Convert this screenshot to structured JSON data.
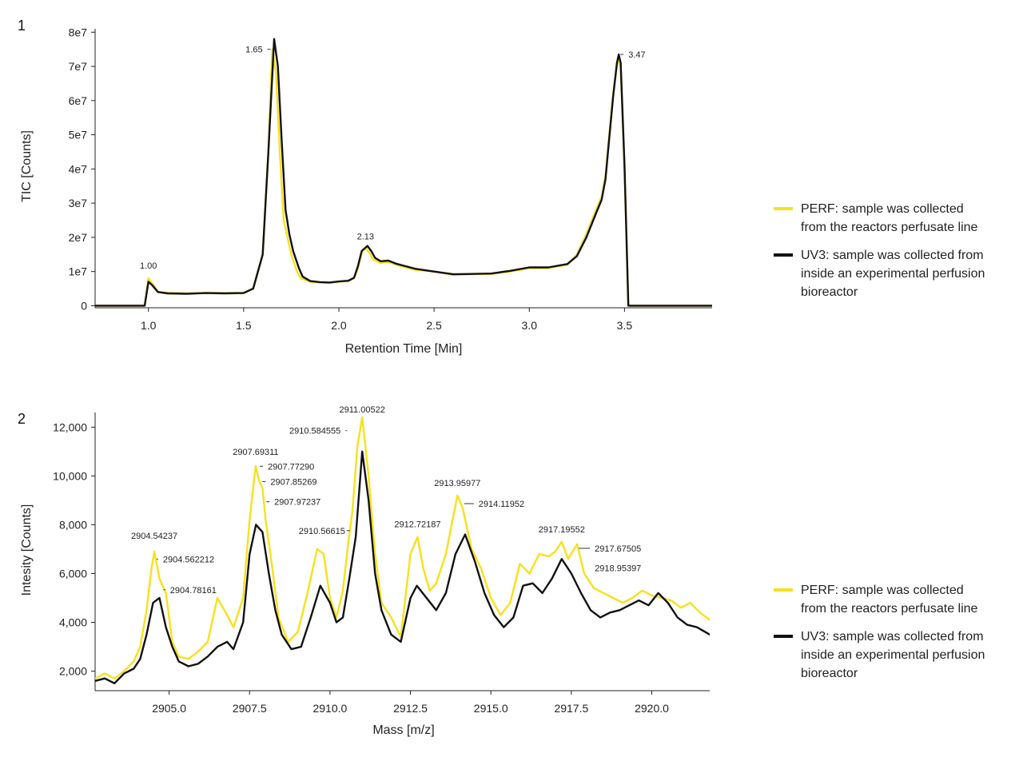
{
  "colors": {
    "perf": "#f7e11b",
    "uv3": "#111111",
    "axis": "#222222"
  },
  "chart_data": [
    {
      "panel": "1",
      "type": "line",
      "xlabel": "Retention Time [Min]",
      "ylabel": "TIC [Counts]",
      "xlim": [
        0.72,
        3.96
      ],
      "ylim": [
        -600000,
        81000000
      ],
      "xticks": [
        1.0,
        1.5,
        2.0,
        2.5,
        3.0,
        3.5
      ],
      "xtick_labels": [
        "1.0",
        "1.5",
        "2.0",
        "2.5",
        "3.0",
        "3.5"
      ],
      "yticks": [
        0,
        10000000,
        20000000,
        30000000,
        40000000,
        50000000,
        60000000,
        70000000,
        80000000
      ],
      "ytick_labels": [
        "0",
        "1e7",
        "2e7",
        "3e7",
        "4e7",
        "5e7",
        "6e7",
        "7e7",
        "8e7"
      ],
      "grid": false,
      "legend_position": "right",
      "series": [
        {
          "name": "PERF: sample was collected from the reactors perfusate line",
          "color": "#f7e11b",
          "x": [
            0.72,
            0.98,
            1.0,
            1.02,
            1.05,
            1.1,
            1.2,
            1.3,
            1.4,
            1.5,
            1.55,
            1.6,
            1.63,
            1.65,
            1.67,
            1.69,
            1.71,
            1.73,
            1.75,
            1.78,
            1.8,
            1.85,
            1.9,
            1.95,
            2.0,
            2.05,
            2.08,
            2.1,
            2.12,
            2.14,
            2.16,
            2.18,
            2.22,
            2.26,
            2.3,
            2.4,
            2.5,
            2.6,
            2.7,
            2.8,
            2.9,
            3.0,
            3.1,
            3.2,
            3.25,
            3.3,
            3.35,
            3.38,
            3.4,
            3.42,
            3.44,
            3.46,
            3.47,
            3.48,
            3.5,
            3.52,
            3.96
          ],
          "y": [
            0,
            0,
            8000000,
            6500000,
            4000000,
            3800000,
            3600000,
            3800000,
            3700000,
            3800000,
            5000000,
            15000000,
            45000000,
            75000000,
            68000000,
            45000000,
            25000000,
            20000000,
            15000000,
            10000000,
            8000000,
            7000000,
            6800000,
            6700000,
            7000000,
            7200000,
            8000000,
            11000000,
            15500000,
            17000000,
            15500000,
            13500000,
            12500000,
            12800000,
            12000000,
            10500000,
            10000000,
            9000000,
            9200000,
            9300000,
            10000000,
            11000000,
            11000000,
            12000000,
            15000000,
            21000000,
            28000000,
            32000000,
            38000000,
            50000000,
            62000000,
            70000000,
            72500000,
            70000000,
            40000000,
            0,
            0
          ]
        },
        {
          "name": "UV3: sample was collected from inside an experimental perfusion bioreactor",
          "color": "#111111",
          "x": [
            0.72,
            0.98,
            1.0,
            1.02,
            1.05,
            1.1,
            1.2,
            1.3,
            1.4,
            1.5,
            1.55,
            1.6,
            1.63,
            1.66,
            1.68,
            1.7,
            1.72,
            1.74,
            1.76,
            1.79,
            1.81,
            1.85,
            1.9,
            1.95,
            2.0,
            2.05,
            2.08,
            2.1,
            2.12,
            2.15,
            2.17,
            2.19,
            2.22,
            2.26,
            2.3,
            2.4,
            2.5,
            2.6,
            2.7,
            2.8,
            2.9,
            3.0,
            3.1,
            3.2,
            3.25,
            3.3,
            3.35,
            3.38,
            3.4,
            3.42,
            3.44,
            3.46,
            3.47,
            3.48,
            3.5,
            3.52,
            3.96
          ],
          "y": [
            0,
            0,
            7000000,
            6000000,
            4000000,
            3600000,
            3500000,
            3700000,
            3600000,
            3700000,
            5000000,
            15000000,
            45000000,
            78000000,
            70000000,
            48000000,
            28000000,
            21000000,
            16000000,
            11000000,
            8500000,
            7200000,
            6900000,
            6800000,
            7100000,
            7300000,
            8200000,
            11500000,
            16000000,
            17500000,
            16000000,
            14000000,
            13000000,
            13200000,
            12300000,
            10800000,
            10000000,
            9200000,
            9300000,
            9400000,
            10200000,
            11200000,
            11200000,
            12200000,
            14500000,
            20000000,
            27000000,
            31000000,
            37000000,
            49000000,
            61000000,
            71000000,
            73500000,
            71000000,
            41000000,
            0,
            0
          ]
        }
      ],
      "annotations": [
        {
          "text": "1.00",
          "x": 1.0,
          "y": 8000000
        },
        {
          "text": "1.65",
          "x": 1.65,
          "y": 75000000
        },
        {
          "text": "2.13",
          "x": 2.14,
          "y": 17000000
        },
        {
          "text": "3.47",
          "x": 3.47,
          "y": 73500000
        }
      ],
      "legend": [
        {
          "lines": [
            "PERF: sample was collected",
            "from the reactors perfusate line"
          ],
          "color": "#f7e11b"
        },
        {
          "lines": [
            "UV3: sample was collected from",
            "inside an experimental perfusion",
            "bioreactor"
          ],
          "color": "#111111"
        }
      ]
    },
    {
      "panel": "2",
      "type": "line",
      "xlabel": "Mass [m/z]",
      "ylabel": "Intesity [Counts]",
      "xlim": [
        2902.7,
        2921.8
      ],
      "ylim": [
        1200,
        12600
      ],
      "xticks": [
        2905.0,
        2907.5,
        2910.0,
        2912.5,
        2915.0,
        2917.5,
        2920.0
      ],
      "xtick_labels": [
        "2905.0",
        "2907.5",
        "2910.0",
        "2912.5",
        "2915.0",
        "2917.5",
        "2920.0"
      ],
      "yticks": [
        2000,
        4000,
        6000,
        8000,
        10000,
        12000
      ],
      "ytick_labels": [
        "2,000",
        "4,000",
        "6,000",
        "8,000",
        "10,000",
        "12,000"
      ],
      "grid": false,
      "legend_position": "right",
      "series": [
        {
          "name": "PERF: sample was collected from the reactors perfusate line",
          "color": "#f7e11b",
          "x": [
            2902.7,
            2903.0,
            2903.3,
            2903.6,
            2903.9,
            2904.1,
            2904.3,
            2904.45,
            2904.54,
            2904.7,
            2904.9,
            2905.1,
            2905.3,
            2905.6,
            2905.9,
            2906.2,
            2906.5,
            2906.8,
            2907.0,
            2907.3,
            2907.5,
            2907.69,
            2907.8,
            2907.9,
            2908.0,
            2908.2,
            2908.4,
            2908.7,
            2909.0,
            2909.3,
            2909.6,
            2909.8,
            2910.0,
            2910.2,
            2910.4,
            2910.57,
            2910.7,
            2910.85,
            2911.0,
            2911.2,
            2911.4,
            2911.6,
            2911.9,
            2912.2,
            2912.5,
            2912.72,
            2912.9,
            2913.1,
            2913.3,
            2913.6,
            2913.96,
            2914.12,
            2914.4,
            2914.7,
            2915.0,
            2915.3,
            2915.6,
            2915.9,
            2916.2,
            2916.5,
            2916.8,
            2917.0,
            2917.2,
            2917.4,
            2917.68,
            2917.9,
            2918.2,
            2918.5,
            2918.8,
            2919.1,
            2919.4,
            2919.7,
            2920.0,
            2920.3,
            2920.6,
            2920.9,
            2921.2,
            2921.5,
            2921.8
          ],
          "y": [
            1700,
            1900,
            1700,
            2000,
            2400,
            3000,
            4500,
            6200,
            6900,
            5800,
            5200,
            3200,
            2600,
            2500,
            2800,
            3200,
            5000,
            4300,
            3800,
            5000,
            8200,
            10400,
            9800,
            9500,
            8200,
            6300,
            4200,
            3200,
            3600,
            5200,
            7000,
            6800,
            5000,
            4200,
            5300,
            7300,
            8600,
            11200,
            12400,
            10000,
            6800,
            4800,
            4200,
            3400,
            6800,
            7500,
            6200,
            5300,
            5600,
            6800,
            9200,
            8700,
            7000,
            6200,
            5000,
            4300,
            4800,
            6400,
            6000,
            6800,
            6700,
            6900,
            7300,
            6600,
            7200,
            6000,
            5400,
            5200,
            5000,
            4800,
            5000,
            5300,
            5100,
            5000,
            4900,
            4600,
            4800,
            4400,
            4100
          ]
        },
        {
          "name": "UV3: sample was collected from inside an experimental perfusion bioreactor",
          "color": "#111111",
          "x": [
            2902.7,
            2903.0,
            2903.3,
            2903.6,
            2903.9,
            2904.1,
            2904.3,
            2904.5,
            2904.7,
            2904.9,
            2905.1,
            2905.3,
            2905.6,
            2905.9,
            2906.2,
            2906.5,
            2906.8,
            2907.0,
            2907.3,
            2907.5,
            2907.7,
            2907.9,
            2908.1,
            2908.3,
            2908.5,
            2908.8,
            2909.1,
            2909.4,
            2909.7,
            2910.0,
            2910.2,
            2910.4,
            2910.6,
            2910.8,
            2911.0,
            2911.2,
            2911.4,
            2911.6,
            2911.9,
            2912.2,
            2912.5,
            2912.7,
            2913.0,
            2913.3,
            2913.6,
            2913.9,
            2914.2,
            2914.5,
            2914.8,
            2915.1,
            2915.4,
            2915.7,
            2916.0,
            2916.3,
            2916.6,
            2916.9,
            2917.2,
            2917.5,
            2917.8,
            2918.1,
            2918.4,
            2918.7,
            2919.0,
            2919.3,
            2919.6,
            2919.9,
            2920.2,
            2920.5,
            2920.8,
            2921.1,
            2921.4,
            2921.8
          ],
          "y": [
            1600,
            1700,
            1500,
            1900,
            2100,
            2500,
            3500,
            4800,
            5000,
            3800,
            3000,
            2400,
            2200,
            2300,
            2600,
            3000,
            3200,
            2900,
            4000,
            6800,
            8000,
            7700,
            6000,
            4500,
            3500,
            2900,
            3000,
            4200,
            5500,
            4800,
            4000,
            4200,
            5800,
            7500,
            11000,
            9000,
            6000,
            4500,
            3500,
            3200,
            5000,
            5500,
            5000,
            4500,
            5200,
            6800,
            7600,
            6500,
            5200,
            4300,
            3800,
            4200,
            5500,
            5600,
            5200,
            5800,
            6600,
            6000,
            5200,
            4500,
            4200,
            4400,
            4500,
            4700,
            4900,
            4700,
            5200,
            4800,
            4200,
            3900,
            3800,
            3500
          ]
        }
      ],
      "annotations": [
        {
          "text": "2904.54237",
          "x": 2904.54,
          "y": 6900
        },
        {
          "text": "2904.562212",
          "x": 2904.56,
          "y": 6200
        },
        {
          "text": "2904.78161",
          "x": 2904.78,
          "y": 5400
        },
        {
          "text": "2907.69311",
          "x": 2907.69,
          "y": 10400
        },
        {
          "text": "2907.77290",
          "x": 2907.77,
          "y": 10200
        },
        {
          "text": "2907.85269",
          "x": 2907.85,
          "y": 9900
        },
        {
          "text": "2907.97237",
          "x": 2907.97,
          "y": 9400
        },
        {
          "text": "2910.56615",
          "x": 2910.57,
          "y": 7300
        },
        {
          "text": "2910.584555",
          "x": 2910.58,
          "y": 11200
        },
        {
          "text": "2911.00522",
          "x": 2911.0,
          "y": 12400
        },
        {
          "text": "2912.72187",
          "x": 2912.72,
          "y": 7500
        },
        {
          "text": "2913.95977",
          "x": 2913.96,
          "y": 9200
        },
        {
          "text": "2914.11952",
          "x": 2914.12,
          "y": 8800
        },
        {
          "text": "2917.19552",
          "x": 2917.2,
          "y": 7300
        },
        {
          "text": "2917.67505",
          "x": 2917.68,
          "y": 7100
        },
        {
          "text": "2918.95397",
          "x": 2918.95,
          "y": 5900
        }
      ],
      "legend": [
        {
          "lines": [
            "PERF: sample was collected",
            "from the reactors perfusate line"
          ],
          "color": "#f7e11b"
        },
        {
          "lines": [
            "UV3: sample was collected from",
            "inside an experimental perfusion",
            "bioreactor"
          ],
          "color": "#111111"
        }
      ]
    }
  ]
}
